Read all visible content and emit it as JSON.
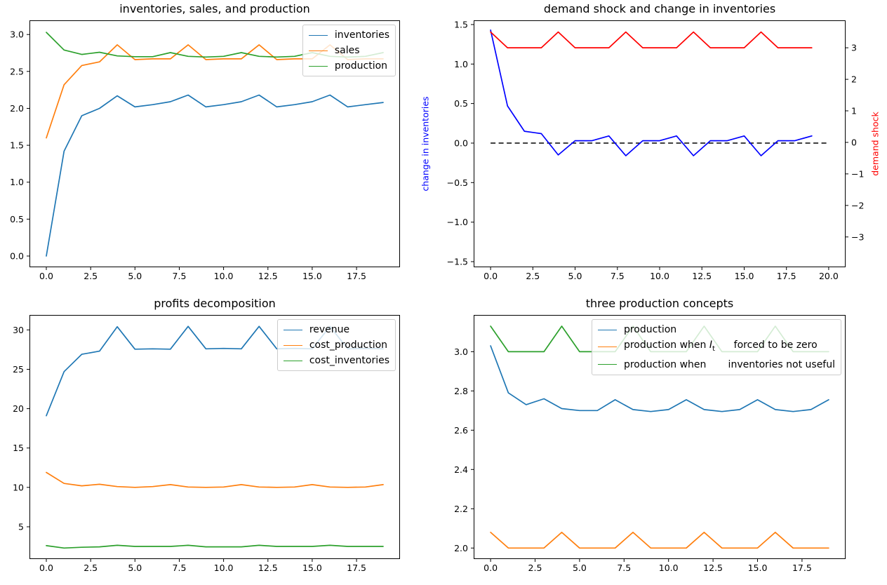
{
  "figure": {
    "background": "#ffffff"
  },
  "chart_data": [
    {
      "type": "line",
      "title": "inventories, sales, and production",
      "x": [
        0,
        1,
        2,
        3,
        4,
        5,
        6,
        7,
        8,
        9,
        10,
        11,
        12,
        13,
        14,
        15,
        16,
        17,
        18,
        19
      ],
      "xlim": [
        -0.95,
        19.95
      ],
      "ylim": [
        -0.152,
        3.192
      ],
      "xticks": [
        0,
        2.5,
        5,
        7.5,
        10,
        12.5,
        15,
        17.5
      ],
      "xtick_labels": [
        "0.0",
        "2.5",
        "5.0",
        "7.5",
        "10.0",
        "12.5",
        "15.0",
        "17.5"
      ],
      "yticks": [
        0,
        0.5,
        1.0,
        1.5,
        2.0,
        2.5,
        3.0
      ],
      "ytick_labels": [
        "0.0",
        "0.5",
        "1.0",
        "1.5",
        "2.0",
        "2.5",
        "3.0"
      ],
      "legend_location": "upper right",
      "series": [
        {
          "name": "inventories",
          "color": "#1f77b4",
          "values": [
            0.0,
            1.42,
            1.9,
            2.0,
            2.17,
            2.02,
            2.05,
            2.09,
            2.18,
            2.02,
            2.05,
            2.09,
            2.18,
            2.02,
            2.05,
            2.09,
            2.18,
            2.02,
            2.05,
            2.08
          ]
        },
        {
          "name": "sales",
          "color": "#ff7f0e",
          "values": [
            1.6,
            2.32,
            2.58,
            2.63,
            2.86,
            2.66,
            2.67,
            2.67,
            2.86,
            2.66,
            2.67,
            2.67,
            2.86,
            2.66,
            2.67,
            2.67,
            2.86,
            2.66,
            2.67,
            2.67
          ]
        },
        {
          "name": "production",
          "color": "#2ca02c",
          "values": [
            3.03,
            2.79,
            2.73,
            2.76,
            2.71,
            2.7,
            2.7,
            2.755,
            2.705,
            2.695,
            2.705,
            2.755,
            2.705,
            2.695,
            2.705,
            2.755,
            2.705,
            2.695,
            2.705,
            2.755
          ]
        }
      ]
    },
    {
      "type": "line",
      "title": "demand shock and change in inventories",
      "x": [
        0,
        1,
        2,
        3,
        4,
        5,
        6,
        7,
        8,
        9,
        10,
        11,
        12,
        13,
        14,
        15,
        16,
        17,
        18,
        19
      ],
      "xlim": [
        -1,
        21
      ],
      "ylim": [
        -1.571,
        1.553
      ],
      "ylim_right": [
        -3.96,
        3.87
      ],
      "xticks": [
        0,
        2.5,
        5,
        7.5,
        10,
        12.5,
        15,
        17.5,
        20
      ],
      "xtick_labels": [
        "0.0",
        "2.5",
        "5.0",
        "7.5",
        "10.0",
        "12.5",
        "15.0",
        "17.5",
        "20.0"
      ],
      "yticks": [
        -1.5,
        -1.0,
        -0.5,
        0,
        0.5,
        1.0,
        1.5
      ],
      "ytick_labels": [
        "−1.5",
        "−1.0",
        "−0.5",
        "0.0",
        "0.5",
        "1.0",
        "1.5"
      ],
      "yticks_right": [
        -3,
        -2,
        -1,
        0,
        1,
        2,
        3
      ],
      "ytick_labels_right": [
        "−3",
        "−2",
        "−1",
        "0",
        "1",
        "2",
        "3"
      ],
      "ylabel_left": {
        "text": "change in inventories",
        "color": "#0000ff"
      },
      "ylabel_right": {
        "text": "demand shock",
        "color": "#ff0000"
      },
      "hline": {
        "y": 0,
        "x_start": 0,
        "x_end": 20,
        "color": "#000000",
        "style": "dashed"
      },
      "series": [
        {
          "name": "change in inventories",
          "color": "#0000ff",
          "axis": "left",
          "values": [
            1.43,
            0.47,
            0.15,
            0.12,
            -0.15,
            0.03,
            0.03,
            0.09,
            -0.16,
            0.03,
            0.03,
            0.09,
            -0.16,
            0.03,
            0.03,
            0.09,
            -0.16,
            0.03,
            0.03,
            0.09
          ]
        },
        {
          "name": "demand shock",
          "color": "#ff0000",
          "axis": "right",
          "values": [
            3.5,
            3,
            3,
            3,
            3.5,
            3,
            3,
            3,
            3.5,
            3,
            3,
            3,
            3.5,
            3,
            3,
            3,
            3.5,
            3,
            3,
            3
          ]
        }
      ]
    },
    {
      "type": "line",
      "title": "profits decomposition",
      "x": [
        0,
        1,
        2,
        3,
        4,
        5,
        6,
        7,
        8,
        9,
        10,
        11,
        12,
        13,
        14,
        15,
        16,
        17,
        18,
        19
      ],
      "xlim": [
        -0.95,
        19.95
      ],
      "ylim": [
        0.9,
        31.9
      ],
      "xticks": [
        0,
        2.5,
        5,
        7.5,
        10,
        12.5,
        15,
        17.5
      ],
      "xtick_labels": [
        "0.0",
        "2.5",
        "5.0",
        "7.5",
        "10.0",
        "12.5",
        "15.0",
        "17.5"
      ],
      "yticks": [
        5,
        10,
        15,
        20,
        25,
        30
      ],
      "ytick_labels": [
        "5",
        "10",
        "15",
        "20",
        "25",
        "30"
      ],
      "legend_location": "upper right",
      "series": [
        {
          "name": "revenue",
          "color": "#1f77b4",
          "values": [
            19.1,
            24.7,
            26.9,
            27.3,
            30.4,
            27.55,
            27.6,
            27.55,
            30.45,
            27.6,
            27.65,
            27.6,
            30.45,
            27.6,
            27.65,
            27.6,
            30.45,
            27.6,
            27.65,
            27.6
          ]
        },
        {
          "name": "cost_production",
          "color": "#ff7f0e",
          "values": [
            11.9,
            10.5,
            10.2,
            10.4,
            10.1,
            10.0,
            10.1,
            10.35,
            10.05,
            10.0,
            10.05,
            10.35,
            10.05,
            10.0,
            10.05,
            10.35,
            10.05,
            10.0,
            10.05,
            10.35
          ]
        },
        {
          "name": "cost_inventories",
          "color": "#2ca02c",
          "values": [
            2.6,
            2.3,
            2.4,
            2.45,
            2.65,
            2.5,
            2.5,
            2.5,
            2.65,
            2.45,
            2.45,
            2.45,
            2.65,
            2.5,
            2.5,
            2.5,
            2.65,
            2.5,
            2.5,
            2.5
          ]
        }
      ]
    },
    {
      "type": "line",
      "title": "three production concepts",
      "x": [
        0,
        1,
        2,
        3,
        4,
        5,
        6,
        7,
        8,
        9,
        10,
        11,
        12,
        13,
        14,
        15,
        16,
        17,
        18,
        19
      ],
      "xlim": [
        -0.95,
        19.95
      ],
      "ylim": [
        1.944,
        3.187
      ],
      "xticks": [
        0,
        2.5,
        5,
        7.5,
        10,
        12.5,
        15,
        17.5
      ],
      "xtick_labels": [
        "0.0",
        "2.5",
        "5.0",
        "7.5",
        "10.0",
        "12.5",
        "15.0",
        "17.5"
      ],
      "yticks": [
        2.0,
        2.2,
        2.4,
        2.6,
        2.8,
        3.0
      ],
      "ytick_labels": [
        "2.0",
        "2.2",
        "2.4",
        "2.6",
        "2.8",
        "3.0"
      ],
      "legend_location": "upper right",
      "series": [
        {
          "name": "production",
          "color": "#1f77b4",
          "values": [
            3.03,
            2.79,
            2.73,
            2.76,
            2.71,
            2.7,
            2.7,
            2.755,
            2.705,
            2.695,
            2.705,
            2.755,
            2.705,
            2.695,
            2.705,
            2.755,
            2.705,
            2.695,
            2.705,
            2.755
          ]
        },
        {
          "name": "production when Iₜ forced to be zero",
          "color": "#ff7f0e",
          "label_pre": "production when ",
          "label_math_base": "I",
          "label_math_sub": "t",
          "label_post": "      forced to be zero",
          "values": [
            2.08,
            2,
            2,
            2,
            2.08,
            2,
            2,
            2,
            2.08,
            2,
            2,
            2,
            2.08,
            2,
            2,
            2,
            2.08,
            2,
            2,
            2
          ]
        },
        {
          "name": "production when       inventories not useful",
          "color": "#2ca02c",
          "values": [
            3.13,
            3,
            3,
            3,
            3.13,
            3,
            3,
            3,
            3.13,
            3,
            3,
            3,
            3.13,
            3,
            3,
            3,
            3.13,
            3,
            3,
            3
          ]
        }
      ]
    }
  ]
}
